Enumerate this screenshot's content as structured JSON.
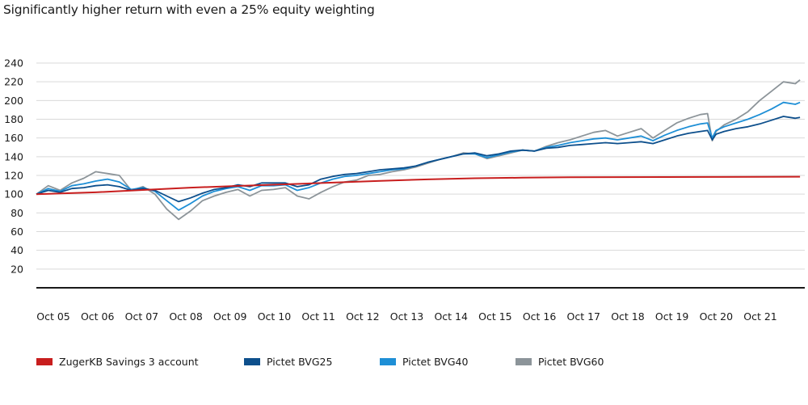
{
  "title": "Significantly higher return with even a 25% equity weighting",
  "chart_data": {
    "type": "line",
    "title": "Significantly higher return with even a 25% equity weighting",
    "xlabel": "",
    "ylabel": "",
    "ylim": [
      0,
      240
    ],
    "yticks": [
      20,
      40,
      60,
      80,
      100,
      120,
      140,
      160,
      180,
      200,
      220,
      240
    ],
    "xlim": [
      2005.75,
      2021.95
    ],
    "x_tick_labels": [
      "Oct 05",
      "Oct 06",
      "Oct 07",
      "Oct 08",
      "Oct 09",
      "Oct 10",
      "Oct 11",
      "Oct 12",
      "Oct 13",
      "Oct 14",
      "Oct 15",
      "Oct 16",
      "Oct 17",
      "Oct 18",
      "Oct 19",
      "Oct 20",
      "Oct 21"
    ],
    "grid": true,
    "legend_position": "bottom",
    "series": [
      {
        "name": "ZugerKB Savings 3 account",
        "color": "#c81e1e",
        "x": [
          2005.75,
          2007.0,
          2008.0,
          2009.0,
          2010.0,
          2011.0,
          2012.0,
          2013.0,
          2014.0,
          2015.0,
          2016.0,
          2017.0,
          2018.0,
          2019.0,
          2020.0,
          2021.0,
          2021.85
        ],
        "values": [
          100,
          102,
          104.5,
          107,
          108.8,
          110.5,
          112.3,
          114.2,
          115.8,
          117,
          117.6,
          118,
          118.2,
          118.3,
          118.4,
          118.5,
          118.6
        ]
      },
      {
        "name": "Pictet BVG25",
        "color": "#0d4f8c",
        "x": [
          2005.75,
          2006.0,
          2006.25,
          2006.5,
          2006.75,
          2007.0,
          2007.25,
          2007.5,
          2007.75,
          2008.0,
          2008.25,
          2008.5,
          2008.75,
          2009.0,
          2009.25,
          2009.5,
          2009.75,
          2010.0,
          2010.25,
          2010.5,
          2010.75,
          2011.0,
          2011.25,
          2011.5,
          2011.75,
          2012.0,
          2012.25,
          2012.5,
          2012.75,
          2013.0,
          2013.25,
          2013.5,
          2013.75,
          2014.0,
          2014.25,
          2014.5,
          2014.75,
          2015.0,
          2015.25,
          2015.5,
          2015.75,
          2016.0,
          2016.25,
          2016.5,
          2016.75,
          2017.0,
          2017.25,
          2017.5,
          2017.75,
          2018.0,
          2018.25,
          2018.5,
          2018.75,
          2019.0,
          2019.25,
          2019.5,
          2019.75,
          2019.9,
          2020.0,
          2020.08,
          2020.25,
          2020.5,
          2020.75,
          2021.0,
          2021.25,
          2021.5,
          2021.75,
          2021.85
        ],
        "values": [
          100,
          104,
          102,
          106,
          107,
          109,
          110,
          108,
          104,
          106,
          104,
          98,
          92,
          96,
          101,
          105,
          107,
          110,
          108,
          112,
          112,
          112,
          108,
          110,
          116,
          119,
          121,
          122,
          124,
          126,
          127,
          128,
          130,
          134,
          137,
          140,
          143,
          144,
          141,
          143,
          146,
          147,
          146,
          149,
          150,
          152,
          153,
          154,
          155,
          154,
          155,
          156,
          154,
          158,
          162,
          165,
          167,
          168,
          158,
          164,
          167,
          170,
          172,
          175,
          179,
          183,
          181,
          182
        ]
      },
      {
        "name": "Pictet BVG40",
        "color": "#1e8fd6",
        "x": [
          2005.75,
          2006.0,
          2006.25,
          2006.5,
          2006.75,
          2007.0,
          2007.25,
          2007.5,
          2007.75,
          2008.0,
          2008.25,
          2008.5,
          2008.75,
          2009.0,
          2009.25,
          2009.5,
          2009.75,
          2010.0,
          2010.25,
          2010.5,
          2010.75,
          2011.0,
          2011.25,
          2011.5,
          2011.75,
          2012.0,
          2012.25,
          2012.5,
          2012.75,
          2013.0,
          2013.25,
          2013.5,
          2013.75,
          2014.0,
          2014.25,
          2014.5,
          2014.75,
          2015.0,
          2015.25,
          2015.5,
          2015.75,
          2016.0,
          2016.25,
          2016.5,
          2016.75,
          2017.0,
          2017.25,
          2017.5,
          2017.75,
          2018.0,
          2018.25,
          2018.5,
          2018.75,
          2019.0,
          2019.25,
          2019.5,
          2019.75,
          2019.9,
          2020.0,
          2020.08,
          2020.25,
          2020.5,
          2020.75,
          2021.0,
          2021.25,
          2021.5,
          2021.75,
          2021.85
        ],
        "values": [
          100,
          106,
          103,
          109,
          111,
          114,
          116,
          113,
          105,
          107,
          103,
          93,
          83,
          90,
          98,
          103,
          106,
          108,
          104,
          109,
          109,
          110,
          104,
          107,
          112,
          116,
          119,
          120,
          122,
          124,
          126,
          127,
          130,
          134,
          137,
          140,
          143,
          143,
          139,
          142,
          145,
          147,
          146,
          150,
          152,
          155,
          157,
          159,
          160,
          158,
          160,
          162,
          157,
          163,
          168,
          172,
          175,
          176,
          160,
          168,
          172,
          176,
          180,
          185,
          191,
          198,
          196,
          198
        ]
      },
      {
        "name": "Pictet BVG60",
        "color": "#8c9499",
        "x": [
          2005.75,
          2006.0,
          2006.25,
          2006.5,
          2006.75,
          2007.0,
          2007.25,
          2007.5,
          2007.75,
          2008.0,
          2008.25,
          2008.5,
          2008.75,
          2009.0,
          2009.25,
          2009.5,
          2009.75,
          2010.0,
          2010.25,
          2010.5,
          2010.75,
          2011.0,
          2011.25,
          2011.5,
          2011.75,
          2012.0,
          2012.25,
          2012.5,
          2012.75,
          2013.0,
          2013.25,
          2013.5,
          2013.75,
          2014.0,
          2014.25,
          2014.5,
          2014.75,
          2015.0,
          2015.25,
          2015.5,
          2015.75,
          2016.0,
          2016.25,
          2016.5,
          2016.75,
          2017.0,
          2017.25,
          2017.5,
          2017.75,
          2018.0,
          2018.25,
          2018.5,
          2018.75,
          2019.0,
          2019.25,
          2019.5,
          2019.75,
          2019.9,
          2020.0,
          2020.08,
          2020.25,
          2020.5,
          2020.75,
          2021.0,
          2021.25,
          2021.5,
          2021.75,
          2021.85
        ],
        "values": [
          100,
          109,
          104,
          112,
          117,
          124,
          122,
          120,
          104,
          108,
          100,
          84,
          73,
          82,
          93,
          98,
          102,
          105,
          98,
          104,
          105,
          107,
          98,
          95,
          102,
          108,
          113,
          115,
          120,
          121,
          124,
          126,
          129,
          133,
          137,
          140,
          144,
          143,
          138,
          141,
          144,
          147,
          146,
          151,
          155,
          158,
          162,
          166,
          168,
          162,
          166,
          170,
          160,
          168,
          176,
          181,
          185,
          186,
          157,
          167,
          174,
          180,
          188,
          200,
          210,
          220,
          218,
          222
        ]
      }
    ]
  }
}
